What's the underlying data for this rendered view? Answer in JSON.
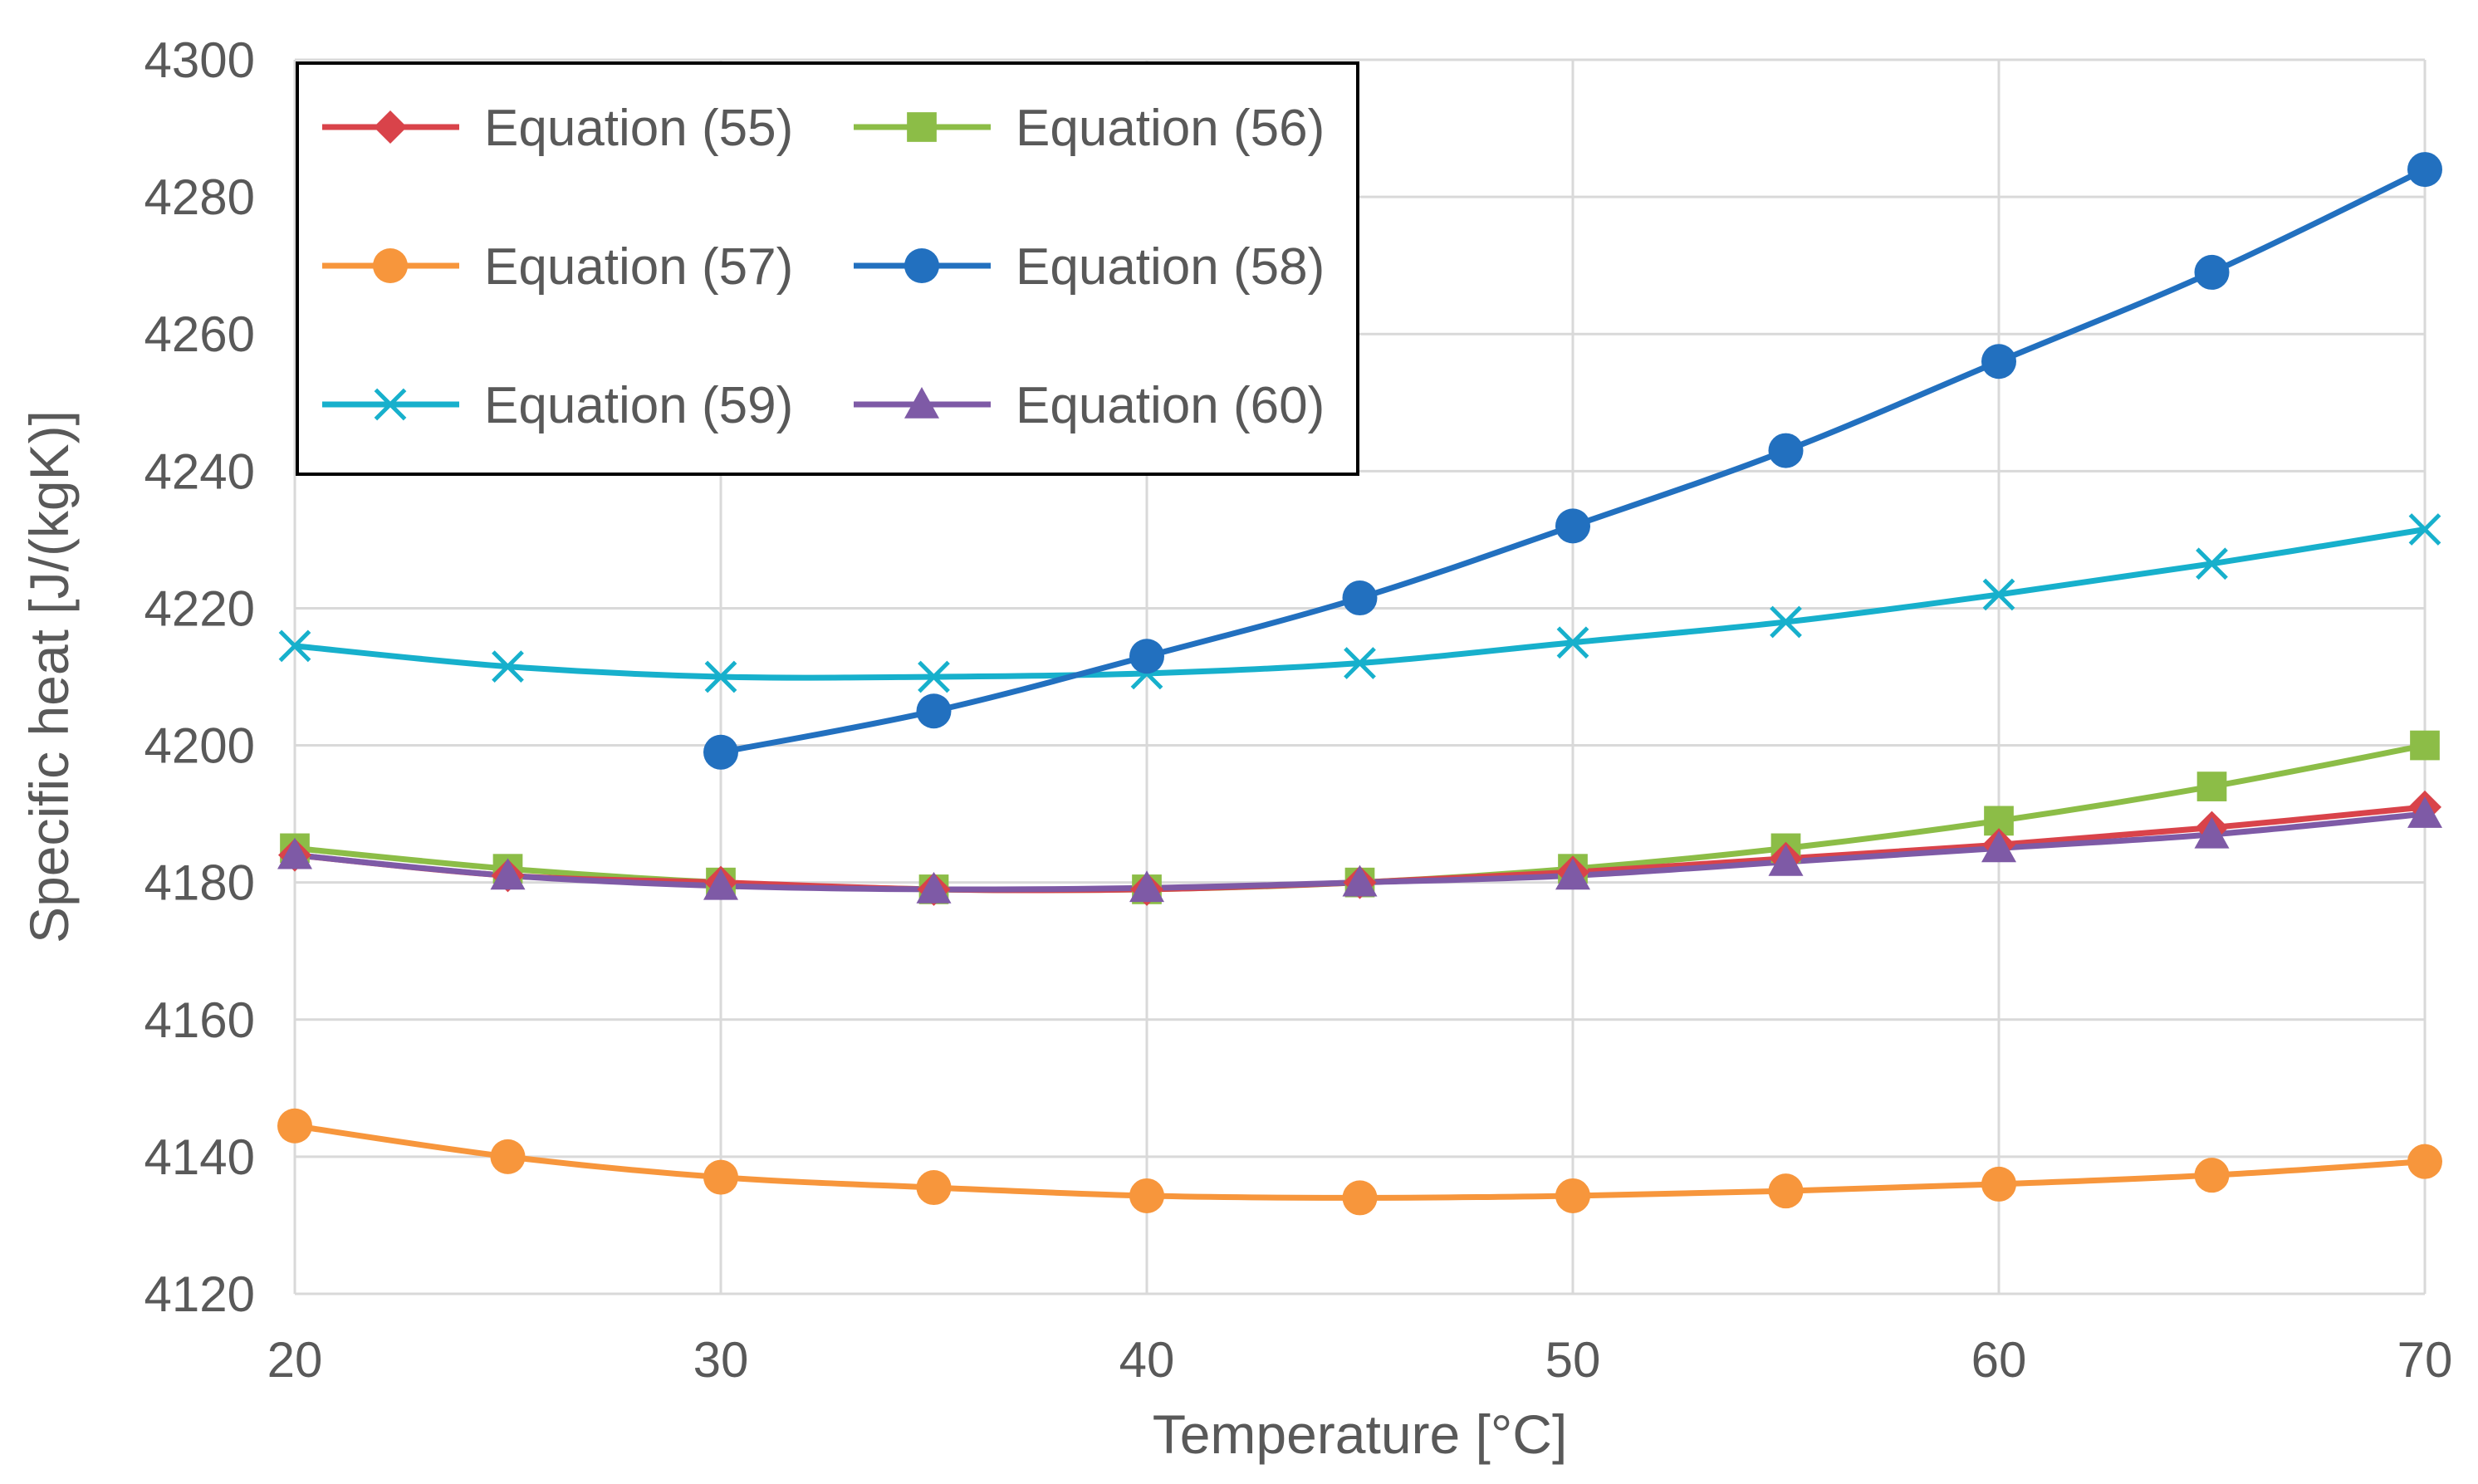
{
  "chart_data": {
    "type": "line",
    "title": "",
    "xlabel": "Temperature [°C]",
    "ylabel": "Specific heat [J/(kgK)]",
    "xlim": [
      20,
      70
    ],
    "ylim": [
      4120,
      4300
    ],
    "xticks": [
      20,
      30,
      40,
      50,
      60,
      70
    ],
    "yticks": [
      4120,
      4140,
      4160,
      4180,
      4200,
      4220,
      4240,
      4260,
      4280,
      4300
    ],
    "grid": true,
    "legend_position": "top-left",
    "series": [
      {
        "name": "Equation (55)",
        "color": "#d9434a",
        "marker": "diamond",
        "x": [
          20,
          25,
          30,
          35,
          40,
          45,
          50,
          55,
          60,
          65,
          70
        ],
        "values": [
          4184,
          4181,
          4180,
          4179,
          4179,
          4180,
          4181.5,
          4183.5,
          4185.5,
          4188,
          4191
        ]
      },
      {
        "name": "Equation (56)",
        "color": "#8cbd47",
        "marker": "square",
        "x": [
          20,
          25,
          30,
          35,
          40,
          45,
          50,
          55,
          60,
          65,
          70
        ],
        "values": [
          4185,
          4182,
          4180,
          4179,
          4179,
          4180,
          4182,
          4185,
          4189,
          4194,
          4200
        ]
      },
      {
        "name": "Equation (57)",
        "color": "#f7963c",
        "marker": "circle",
        "x": [
          20,
          25,
          30,
          35,
          40,
          45,
          50,
          55,
          60,
          65,
          70
        ],
        "values": [
          4144.5,
          4140,
          4137,
          4135.5,
          4134.3,
          4134,
          4134.3,
          4135,
          4136,
          4137.3,
          4139.3
        ]
      },
      {
        "name": "Equation (58)",
        "color": "#2270bf",
        "marker": "circle",
        "x": [
          30,
          35,
          40,
          45,
          50,
          55,
          60,
          65,
          70
        ],
        "values": [
          4199,
          4205,
          4213,
          4221.5,
          4232,
          4243,
          4256,
          4269,
          4284
        ]
      },
      {
        "name": "Equation (59)",
        "color": "#17b0cc",
        "marker": "x",
        "x": [
          20,
          25,
          30,
          35,
          40,
          45,
          50,
          55,
          60,
          65,
          70
        ],
        "values": [
          4214.5,
          4211.5,
          4210,
          4210,
          4210.5,
          4212,
          4215,
          4218,
          4222,
          4226.5,
          4231.5
        ]
      },
      {
        "name": "Equation (60)",
        "color": "#7e5aa6",
        "marker": "triangle",
        "x": [
          20,
          25,
          30,
          35,
          40,
          45,
          50,
          55,
          60,
          65,
          70
        ],
        "values": [
          4184,
          4181,
          4179.5,
          4179,
          4179.2,
          4180,
          4181,
          4183,
          4185,
          4187,
          4190
        ]
      }
    ]
  }
}
